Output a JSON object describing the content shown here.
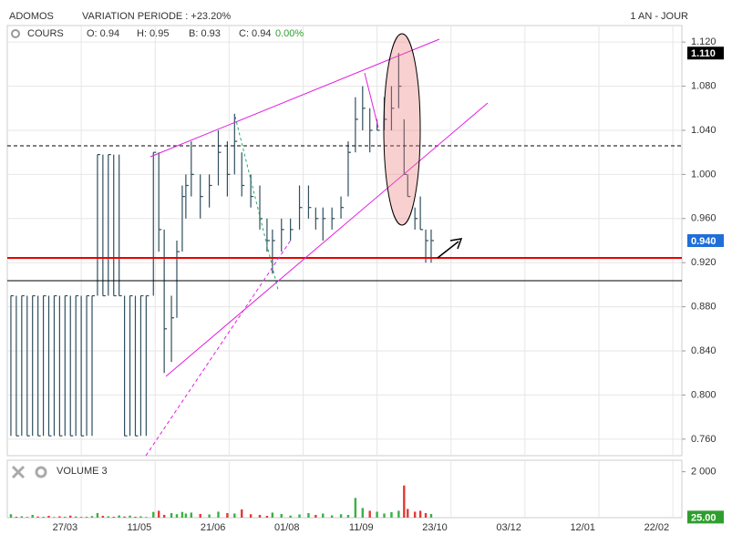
{
  "header": {
    "symbol": "ADOMOS",
    "variation": "VARIATION PERIODE : +23.20%",
    "period": "1 AN - JOUR"
  },
  "chart_data": [
    {
      "type": "ohlc",
      "title": "COURS",
      "legend": [
        "O: 0.94",
        "H: 0.95",
        "B: 0.93",
        "C: 0.94"
      ],
      "change": "0.00%",
      "color": "#2f4f5f",
      "grid": true,
      "xlim": [
        0,
        374
      ],
      "xticks": [
        41,
        82,
        123,
        164,
        205,
        246,
        287,
        328,
        369
      ],
      "ylim": [
        0.745,
        1.135
      ],
      "yticks": [
        {
          "value": 0.76,
          "label": "0.760"
        },
        {
          "value": 0.8,
          "label": "0.800"
        },
        {
          "value": 0.84,
          "label": "0.840"
        },
        {
          "value": 0.88,
          "label": "0.880"
        },
        {
          "value": 0.92,
          "label": "0.920"
        },
        {
          "value": 0.96,
          "label": "0.960"
        },
        {
          "value": 1.0,
          "label": "1.000"
        },
        {
          "value": 1.04,
          "label": "1.040"
        },
        {
          "value": 1.08,
          "label": "1.080"
        },
        {
          "value": 1.12,
          "label": "1.120"
        }
      ],
      "x": [
        2,
        5,
        8,
        11,
        14,
        17,
        20,
        23,
        26,
        29,
        32,
        35,
        38,
        41,
        44,
        47,
        50,
        53,
        56,
        59,
        62,
        65,
        68,
        71,
        74,
        77,
        81,
        84,
        87,
        91,
        94,
        97,
        99,
        102,
        107,
        112,
        117,
        122,
        126,
        130,
        135,
        140,
        144,
        147,
        152,
        157,
        162,
        167,
        171,
        175,
        180,
        185,
        189,
        193,
        197,
        201,
        205,
        209,
        213,
        217,
        220,
        222,
        226,
        229,
        232,
        235
      ],
      "high": [
        0.89,
        0.89,
        0.89,
        0.89,
        0.89,
        0.89,
        0.89,
        0.89,
        0.89,
        0.89,
        0.89,
        0.89,
        0.89,
        0.89,
        0.89,
        0.89,
        1.018,
        1.018,
        1.018,
        1.018,
        1.018,
        0.89,
        0.89,
        0.89,
        0.89,
        0.89,
        1.02,
        1.02,
        0.95,
        0.89,
        0.94,
        0.99,
        1.0,
        1.03,
        1.0,
        1.0,
        1.04,
        1.03,
        1.055,
        1.02,
        1.0,
        0.99,
        0.96,
        0.95,
        0.96,
        0.96,
        0.99,
        0.99,
        0.97,
        0.97,
        0.97,
        0.98,
        1.03,
        1.07,
        1.08,
        1.06,
        1.05,
        1.07,
        1.08,
        1.11,
        1.05,
        1.0,
        0.97,
        0.98,
        0.95,
        0.95
      ],
      "low": [
        0.763,
        0.763,
        0.763,
        0.763,
        0.763,
        0.763,
        0.763,
        0.763,
        0.763,
        0.763,
        0.763,
        0.763,
        0.763,
        0.763,
        0.763,
        0.763,
        0.89,
        0.89,
        0.89,
        0.89,
        0.89,
        0.763,
        0.763,
        0.763,
        0.763,
        0.763,
        0.89,
        0.93,
        0.82,
        0.83,
        0.87,
        0.93,
        0.96,
        0.98,
        0.96,
        0.97,
        0.99,
        0.98,
        1.0,
        0.98,
        0.97,
        0.95,
        0.93,
        0.91,
        0.93,
        0.94,
        0.95,
        0.96,
        0.95,
        0.94,
        0.95,
        0.96,
        0.98,
        1.02,
        1.04,
        1.02,
        1.04,
        1.04,
        1.04,
        1.06,
        1.0,
        0.98,
        0.95,
        0.95,
        0.92,
        0.92
      ],
      "close": [
        0.89,
        0.763,
        0.89,
        0.763,
        0.89,
        0.763,
        0.89,
        0.763,
        0.89,
        0.763,
        0.89,
        0.763,
        0.89,
        0.763,
        0.89,
        0.89,
        1.018,
        0.89,
        1.018,
        0.89,
        0.89,
        0.763,
        0.89,
        0.763,
        0.89,
        0.89,
        1.02,
        0.95,
        0.86,
        0.87,
        0.93,
        0.98,
        0.99,
        1.0,
        0.98,
        0.99,
        1.02,
        1.0,
        1.03,
        0.99,
        0.98,
        0.96,
        0.94,
        0.94,
        0.95,
        0.95,
        0.97,
        0.97,
        0.96,
        0.96,
        0.96,
        0.97,
        1.02,
        1.05,
        1.06,
        1.04,
        1.04,
        1.05,
        1.06,
        1.08,
        1.0,
        0.98,
        0.96,
        0.95,
        0.94,
        0.94
      ],
      "last_badge": {
        "value": 1.11,
        "label": "1.110",
        "color": "#000000"
      },
      "current_badge": {
        "value": 0.94,
        "label": "0.940",
        "color": "#1e6fd9"
      }
    },
    {
      "type": "volume",
      "title": "VOLUME 3",
      "up_color": "#3cb043",
      "down_color": "#e53935",
      "xlim": [
        0,
        374
      ],
      "xticks": [
        {
          "value": 41,
          "label": "27/03"
        },
        {
          "value": 82,
          "label": "11/05"
        },
        {
          "value": 123,
          "label": "21/06"
        },
        {
          "value": 164,
          "label": "01/08"
        },
        {
          "value": 205,
          "label": "11/09"
        },
        {
          "value": 246,
          "label": "23/10"
        },
        {
          "value": 287,
          "label": "03/12"
        },
        {
          "value": 328,
          "label": "12/01"
        },
        {
          "value": 369,
          "label": "22/02"
        }
      ],
      "ylim": [
        0,
        2500
      ],
      "yticks": [
        {
          "value": 2000,
          "label": "2 000"
        }
      ],
      "x": [
        2,
        5,
        8,
        11,
        14,
        17,
        20,
        23,
        26,
        29,
        32,
        35,
        38,
        41,
        44,
        47,
        50,
        53,
        56,
        59,
        62,
        65,
        68,
        71,
        74,
        77,
        81,
        84,
        87,
        91,
        94,
        97,
        99,
        102,
        107,
        112,
        117,
        122,
        126,
        130,
        135,
        140,
        144,
        147,
        152,
        157,
        162,
        167,
        171,
        175,
        180,
        185,
        189,
        193,
        197,
        201,
        205,
        209,
        213,
        217,
        220,
        222,
        226,
        229,
        232,
        235
      ],
      "values": [
        150,
        40,
        60,
        30,
        120,
        50,
        40,
        80,
        30,
        60,
        40,
        90,
        50,
        30,
        40,
        70,
        200,
        80,
        60,
        40,
        100,
        50,
        90,
        40,
        60,
        30,
        250,
        300,
        120,
        200,
        150,
        250,
        180,
        220,
        160,
        140,
        260,
        200,
        180,
        360,
        150,
        120,
        80,
        220,
        160,
        90,
        140,
        200,
        120,
        180,
        100,
        150,
        120,
        860,
        420,
        300,
        260,
        180,
        240,
        300,
        1400,
        380,
        260,
        300,
        200,
        160
      ],
      "last_badge": {
        "value": 25,
        "label": "25.00",
        "color": "#2e9e2e"
      }
    }
  ]
}
